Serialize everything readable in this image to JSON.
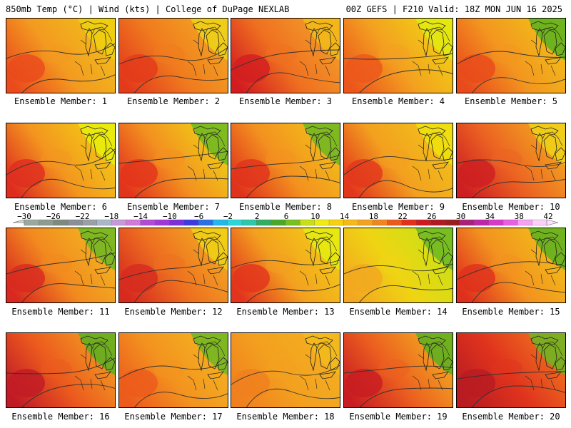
{
  "header": {
    "left": "850mb Temp (°C) | Wind (kts) | College of DuPage NEXLAB",
    "right": "00Z GEFS | F210 Valid: 18Z MON JUN 16 2025"
  },
  "members": [
    {
      "label": "Ensemble Member: 1",
      "west": "#ea4a1c",
      "mid": "#f39a20",
      "east": "#f1c01a",
      "ne": "#efd00f"
    },
    {
      "label": "Ensemble Member: 2",
      "west": "#e33a1c",
      "mid": "#f07b1e",
      "east": "#f3a822",
      "ne": "#efd418"
    },
    {
      "label": "Ensemble Member: 3",
      "west": "#d21d20",
      "mid": "#ef7020",
      "east": "#f3a12a",
      "ne": "#f2bb18"
    },
    {
      "label": "Ensemble Member: 4",
      "west": "#ec561c",
      "mid": "#f3a020",
      "east": "#f1d512",
      "ne": "#e2ea10"
    },
    {
      "label": "Ensemble Member: 5",
      "west": "#e84a1c",
      "mid": "#f3961f",
      "east": "#f1c218",
      "ne": "#58b020"
    },
    {
      "label": "Ensemble Member: 6",
      "west": "#de2d1f",
      "mid": "#f3961f",
      "east": "#f3cf14",
      "ne": "#e8ef0a"
    },
    {
      "label": "Ensemble Member: 7",
      "west": "#e2331c",
      "mid": "#f39020",
      "east": "#efd515",
      "ne": "#6ab722"
    },
    {
      "label": "Ensemble Member: 8",
      "west": "#e0321d",
      "mid": "#f3911f",
      "east": "#f3c219",
      "ne": "#6ab722"
    },
    {
      "label": "Ensemble Member: 9",
      "west": "#e2361d",
      "mid": "#f3a01f",
      "east": "#f1c418",
      "ne": "#efe30f"
    },
    {
      "label": "Ensemble Member: 10",
      "west": "#cd1e22",
      "mid": "#ec6422",
      "east": "#f3ae20",
      "ne": "#efd218"
    },
    {
      "label": "Ensemble Member: 11",
      "west": "#d8281f",
      "mid": "#f28a1f",
      "east": "#f3b820",
      "ne": "#6ab722"
    },
    {
      "label": "Ensemble Member: 12",
      "west": "#d62a1f",
      "mid": "#ee7020",
      "east": "#f3ae22",
      "ne": "#f0d214"
    },
    {
      "label": "Ensemble Member: 13",
      "west": "#e2331d",
      "mid": "#f3a01f",
      "east": "#f3cf16",
      "ne": "#e4ec10"
    },
    {
      "label": "Ensemble Member: 14",
      "west": "#f2a720",
      "mid": "#efd513",
      "east": "#c5e216",
      "ne": "#6ab722"
    },
    {
      "label": "Ensemble Member: 15",
      "west": "#df2f1d",
      "mid": "#f2921f",
      "east": "#f3c218",
      "ne": "#58b020"
    },
    {
      "label": "Ensemble Member: 16",
      "west": "#c01a26",
      "mid": "#ec5a1e",
      "east": "#f3a021",
      "ne": "#58b020"
    },
    {
      "label": "Ensemble Member: 17",
      "west": "#ec5a1c",
      "mid": "#f3931f",
      "east": "#f3b520",
      "ne": "#6ab722"
    },
    {
      "label": "Ensemble Member: 18",
      "west": "#f0801e",
      "mid": "#f3a01f",
      "east": "#f3b020",
      "ne": "#f2bb1c"
    },
    {
      "label": "Ensemble Member: 19",
      "west": "#c81c22",
      "mid": "#ec601f",
      "east": "#f3b020",
      "ne": "#58b020"
    },
    {
      "label": "Ensemble Member: 20",
      "west": "#b81b22",
      "mid": "#e0331d",
      "east": "#f0781f",
      "ne": "#6ab722"
    }
  ],
  "colorbar": {
    "ticks": [
      "−30",
      "−26",
      "−22",
      "−18",
      "−14",
      "−10",
      "−6",
      "−2",
      "2",
      "6",
      "10",
      "14",
      "18",
      "22",
      "26",
      "30",
      "34",
      "38",
      "42"
    ],
    "colors": [
      "#9aa9a0",
      "#8c9c8f",
      "#7d8a7f",
      "#8a8f96",
      "#9aa0a8",
      "#aab7c8",
      "#c59ad6",
      "#d27ad8",
      "#b24ad8",
      "#a038d8",
      "#7b30d8",
      "#3d3ae0",
      "#2a6fe8",
      "#23b8e8",
      "#2ad6d8",
      "#2ec8a8",
      "#2fb060",
      "#4aa828",
      "#78c020",
      "#c8e015",
      "#f0ec10",
      "#f7d00e",
      "#f6ba16",
      "#f3a21f",
      "#ef861f",
      "#eb5a1c",
      "#e2301c",
      "#cc1a20",
      "#b01a20",
      "#9a1e1e",
      "#a8207a",
      "#c024a8",
      "#d83ac8",
      "#e860e0",
      "#f6a0f0",
      "#fad0f8"
    ]
  }
}
